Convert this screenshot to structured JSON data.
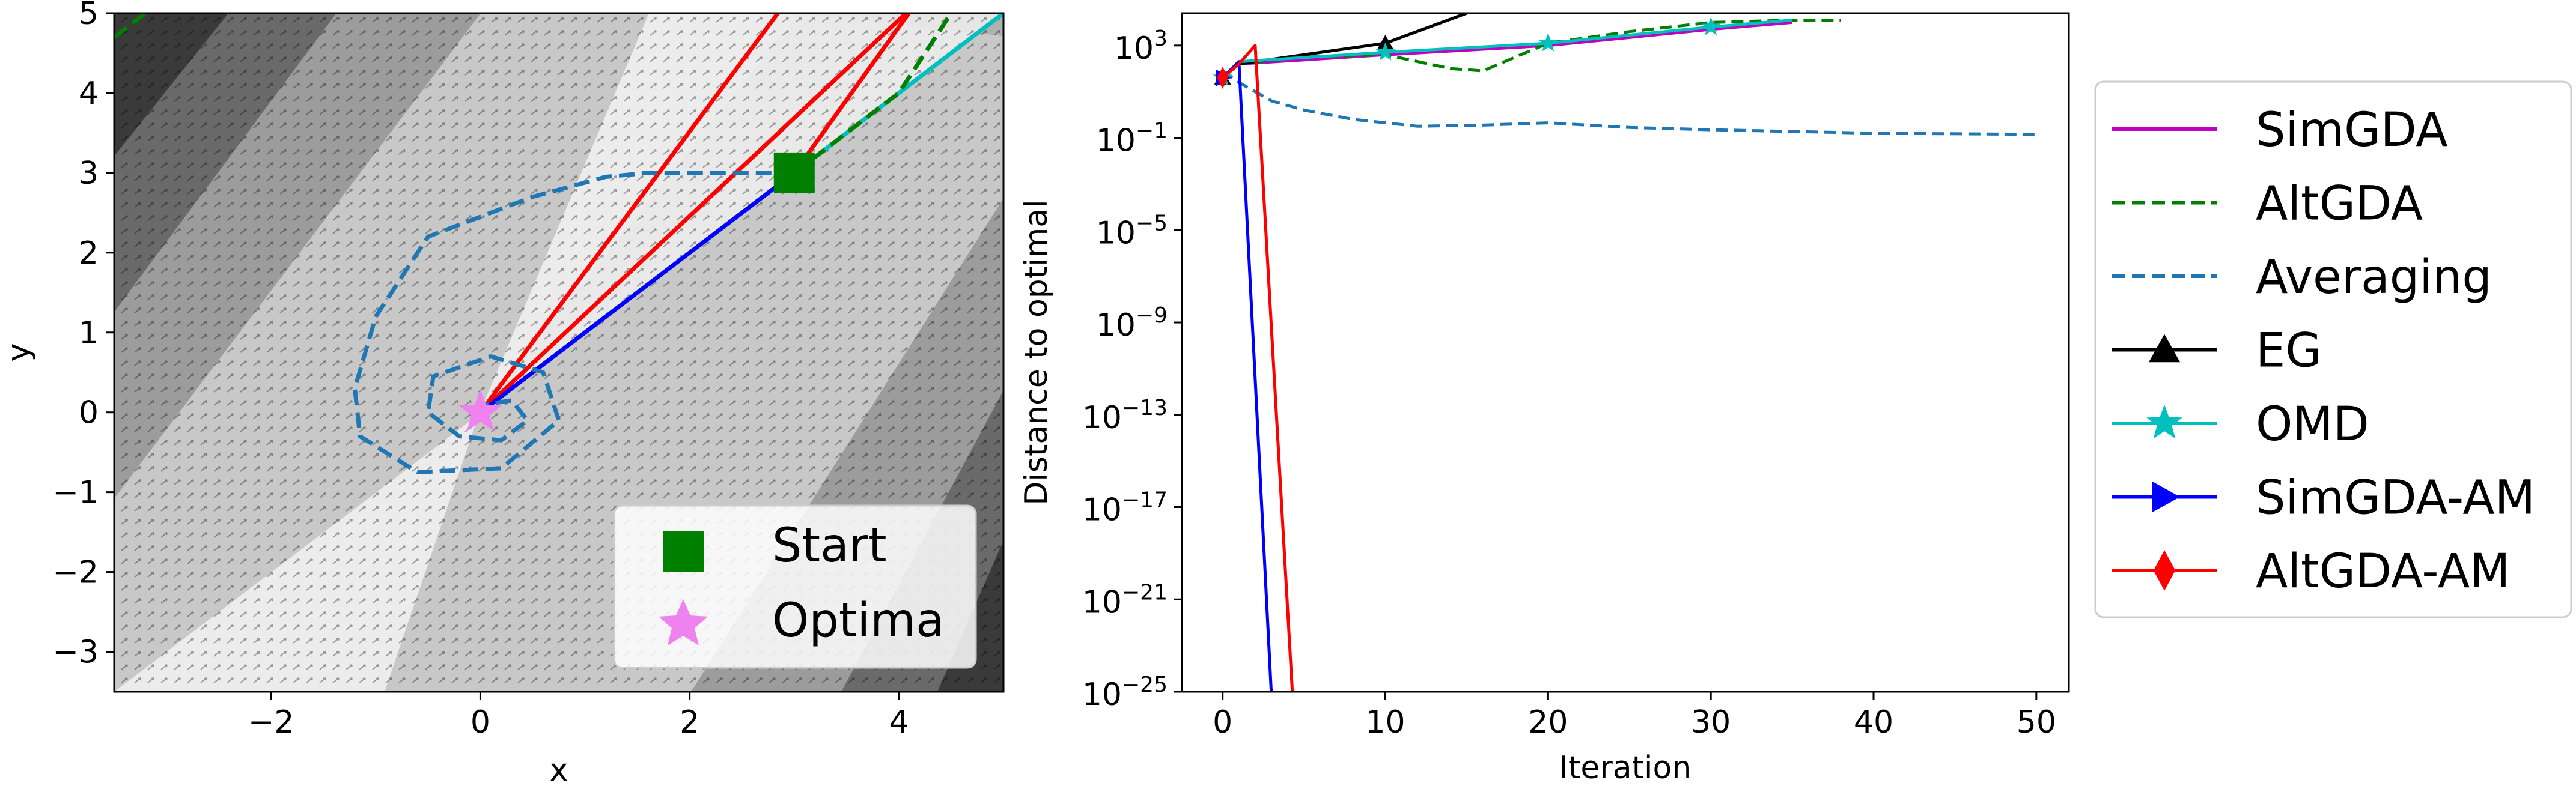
{
  "chart_data": [
    {
      "type": "scatter",
      "subtype": "trajectory-over-vector-field",
      "xlabel": "x",
      "ylabel": "y",
      "xlim": [
        -3.5,
        5
      ],
      "ylim": [
        -3.5,
        5
      ],
      "xticks": [
        -2,
        0,
        2,
        4
      ],
      "yticks": [
        -3,
        -2,
        -1,
        0,
        1,
        2,
        3,
        4,
        5
      ],
      "tick_labels_x": [
        "−2",
        "0",
        "2",
        "4"
      ],
      "tick_labels_y": [
        "−3",
        "−2",
        "−1",
        "0",
        "1",
        "2",
        "3",
        "4",
        "5"
      ],
      "background": "grayscale contour regions with quiver arrows",
      "legend": {
        "placement": "lower-right",
        "entries": [
          {
            "label": "Start",
            "marker": "square",
            "color": "#008000"
          },
          {
            "label": "Optima",
            "marker": "star",
            "color": "#ee82ee"
          }
        ]
      },
      "start": [
        3,
        3
      ],
      "optimum": [
        0,
        0
      ],
      "series": [
        {
          "name": "SimGDA",
          "color": "#00bfbf",
          "style": "solid",
          "points": [
            [
              3,
              3
            ],
            [
              4.55,
              4.55
            ],
            [
              5.1,
              5.1
            ]
          ]
        },
        {
          "name": "AltGDA",
          "color": "#008000",
          "style": "dashed",
          "points": [
            [
              3,
              3
            ],
            [
              4.0,
              4.0
            ],
            [
              4.5,
              5.0
            ],
            [
              4.6,
              5.2
            ]
          ]
        },
        {
          "name": "AltGDA-AM",
          "color": "#ff0000",
          "style": "solid",
          "points": [
            [
              3,
              3
            ],
            [
              4.15,
              5.1
            ],
            [
              0,
              0
            ],
            [
              2.9,
              5.1
            ]
          ]
        },
        {
          "name": "SimGDA-AM",
          "color": "#0000ff",
          "style": "solid",
          "points": [
            [
              3,
              3
            ],
            [
              0,
              0
            ]
          ]
        },
        {
          "name": "Averaging",
          "color": "#1f77b4",
          "style": "dashed",
          "points": [
            [
              3,
              3
            ],
            [
              1.6,
              3.0
            ],
            [
              1.2,
              2.95
            ],
            [
              0.5,
              2.7
            ],
            [
              -0.5,
              2.2
            ],
            [
              -1.0,
              1.2
            ],
            [
              -1.2,
              0.3
            ],
            [
              -1.15,
              -0.3
            ],
            [
              -0.6,
              -0.75
            ],
            [
              0.2,
              -0.7
            ],
            [
              0.75,
              -0.1
            ],
            [
              0.6,
              0.5
            ],
            [
              0.1,
              0.7
            ],
            [
              -0.45,
              0.45
            ],
            [
              -0.5,
              0.0
            ],
            [
              -0.2,
              -0.3
            ],
            [
              0.2,
              -0.35
            ],
            [
              0.45,
              -0.1
            ],
            [
              0.3,
              0.15
            ],
            [
              0.05,
              0.1
            ],
            [
              0,
              0
            ]
          ]
        },
        {
          "name": "EG",
          "color": "#008000",
          "style": "dashed",
          "points": [
            [
              -3.5,
              4.7
            ],
            [
              -3.2,
              5.0
            ]
          ]
        }
      ]
    },
    {
      "type": "line",
      "xlabel": "Iteration",
      "ylabel": "Distance to optimal",
      "yscale": "log",
      "xlim": [
        -2.5,
        52
      ],
      "ylim_exp": [
        -25,
        4.4
      ],
      "xticks": [
        0,
        10,
        20,
        30,
        40,
        50
      ],
      "ytick_bases": [
        "10",
        "10",
        "10",
        "10",
        "10",
        "10",
        "10",
        "10"
      ],
      "ytick_exps": [
        "3",
        "−1",
        "−5",
        "−9",
        "−13",
        "−17",
        "−21",
        "−25"
      ],
      "series": [
        {
          "name": "SimGDA",
          "color": "#bf00bf",
          "style": "solid",
          "marker": "none",
          "x": [
            0,
            1,
            10,
            20,
            30,
            35
          ],
          "log10y": [
            1.6,
            2.2,
            2.6,
            3.0,
            3.7,
            4.0
          ]
        },
        {
          "name": "AltGDA",
          "color": "#008000",
          "style": "dashed",
          "marker": "none",
          "x": [
            0,
            1,
            5,
            10,
            14,
            16,
            18,
            20,
            25,
            30,
            35,
            38
          ],
          "log10y": [
            1.6,
            2.2,
            2.5,
            2.6,
            2.0,
            1.9,
            2.5,
            3.1,
            3.6,
            4.0,
            4.1,
            4.1
          ]
        },
        {
          "name": "Averaging",
          "color": "#1f77b4",
          "style": "dashed",
          "marker": "none",
          "x": [
            0,
            1,
            3,
            5,
            8,
            12,
            16,
            20,
            25,
            30,
            40,
            50
          ],
          "log10y": [
            1.9,
            1.4,
            0.6,
            0.2,
            -0.2,
            -0.5,
            -0.45,
            -0.35,
            -0.55,
            -0.65,
            -0.8,
            -0.85
          ]
        },
        {
          "name": "EG",
          "color": "#000000",
          "style": "solid",
          "marker": "triangle",
          "x": [
            0,
            1,
            10,
            15
          ],
          "log10y": [
            1.6,
            2.2,
            3.1,
            4.4
          ]
        },
        {
          "name": "OMD",
          "color": "#00bfbf",
          "style": "solid",
          "marker": "star",
          "x": [
            0,
            1,
            10,
            20,
            30,
            35
          ],
          "log10y": [
            1.6,
            2.3,
            2.7,
            3.1,
            3.8,
            4.1
          ]
        },
        {
          "name": "SimGDA-AM",
          "color": "#0000ff",
          "style": "solid",
          "marker": "triangle-right",
          "x": [
            0,
            1,
            3
          ],
          "log10y": [
            1.6,
            2.3,
            -25.2
          ]
        },
        {
          "name": "AltGDA-AM",
          "color": "#ff0000",
          "style": "solid",
          "marker": "diamond",
          "x": [
            0,
            1,
            2,
            4.3
          ],
          "log10y": [
            1.6,
            2.2,
            3.0,
            -25.2
          ]
        }
      ],
      "legend": {
        "placement": "outside-right",
        "entries": [
          {
            "label": "SimGDA",
            "color": "#bf00bf",
            "style": "solid",
            "marker": "none"
          },
          {
            "label": "AltGDA",
            "color": "#008000",
            "style": "dashed",
            "marker": "none"
          },
          {
            "label": "Averaging",
            "color": "#1f77b4",
            "style": "dashed",
            "marker": "none"
          },
          {
            "label": "EG",
            "color": "#000000",
            "style": "solid",
            "marker": "triangle"
          },
          {
            "label": "OMD",
            "color": "#00bfbf",
            "style": "solid",
            "marker": "star"
          },
          {
            "label": "SimGDA-AM",
            "color": "#0000ff",
            "style": "solid",
            "marker": "triangle-right"
          },
          {
            "label": "AltGDA-AM",
            "color": "#ff0000",
            "style": "solid",
            "marker": "diamond"
          }
        ]
      }
    }
  ]
}
